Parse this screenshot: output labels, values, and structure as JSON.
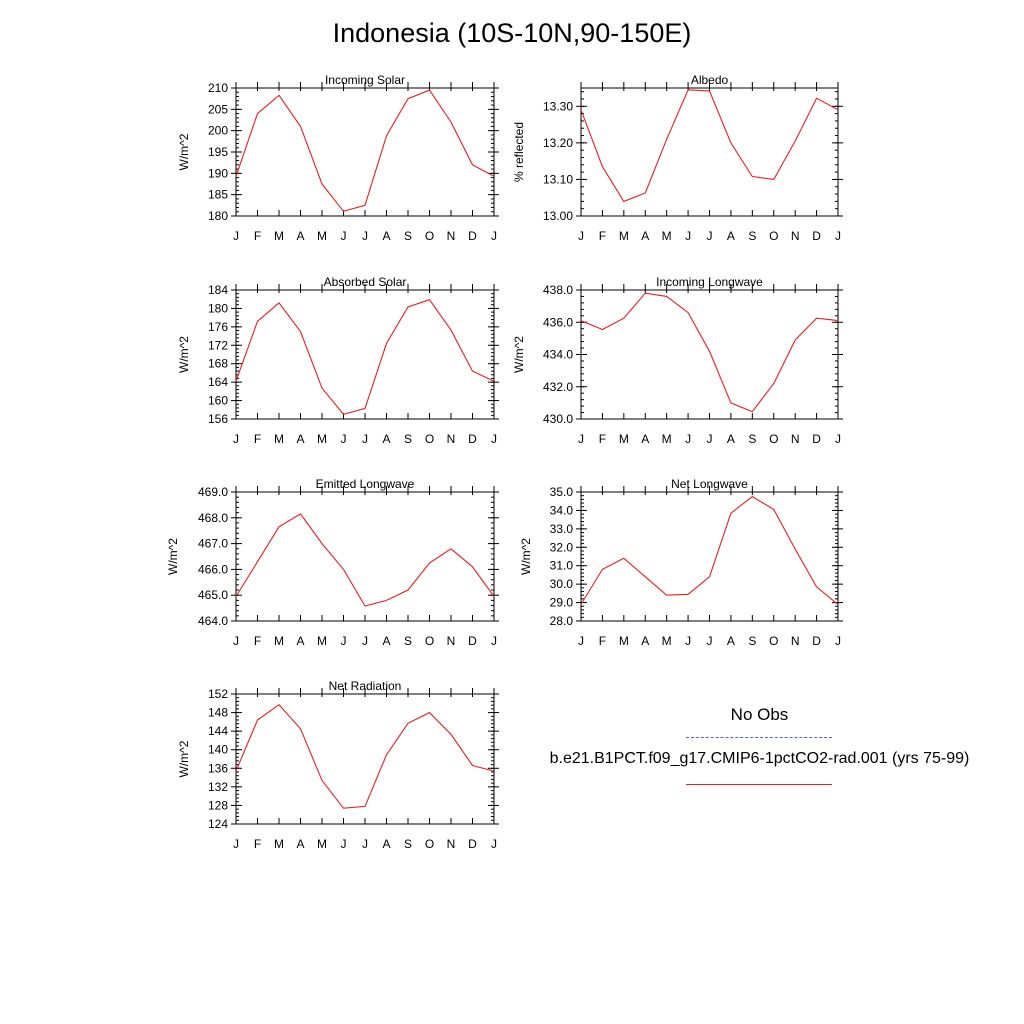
{
  "title": "Indonesia (10S-10N,90-150E)",
  "months": [
    "J",
    "F",
    "M",
    "A",
    "M",
    "J",
    "J",
    "A",
    "S",
    "O",
    "N",
    "D",
    "J"
  ],
  "colors": {
    "model_line": "#e52020",
    "obs_line": "#5a5af0",
    "axis": "#000000"
  },
  "legend": {
    "obs_label": "No Obs",
    "model_label": "b.e21.B1PCT.f09_g17.CMIP6-1pctCO2-rad.001 (yrs 75-99)"
  },
  "chart_data": [
    {
      "type": "line",
      "title": "Incoming Solar",
      "ylabel": "W/m^2",
      "ylim": [
        180,
        210
      ],
      "yticks": [
        180,
        185,
        190,
        195,
        200,
        205,
        210
      ],
      "ytick_labels": [
        "180",
        "185",
        "190",
        "195",
        "200",
        "205",
        "210"
      ],
      "x": [
        "J",
        "F",
        "M",
        "A",
        "M",
        "J",
        "J",
        "A",
        "S",
        "O",
        "N",
        "D",
        "J"
      ],
      "series": [
        {
          "values": [
            189.3,
            204.0,
            208.3,
            201.0,
            187.5,
            181.1,
            182.5,
            198.8,
            207.5,
            209.5,
            202.0,
            192.0,
            189.3
          ]
        }
      ]
    },
    {
      "type": "line",
      "title": "Albedo",
      "ylabel": "% reflected",
      "ylim": [
        13.0,
        13.35
      ],
      "yticks": [
        13.0,
        13.1,
        13.2,
        13.3
      ],
      "ytick_labels": [
        "13.00",
        "13.10",
        "13.20",
        "13.30"
      ],
      "x": [
        "J",
        "F",
        "M",
        "A",
        "M",
        "J",
        "J",
        "A",
        "S",
        "O",
        "N",
        "D",
        "J"
      ],
      "series": [
        {
          "values": [
            13.29,
            13.135,
            13.04,
            13.063,
            13.21,
            13.345,
            13.342,
            13.2,
            13.108,
            13.1,
            13.205,
            13.322,
            13.29
          ]
        }
      ]
    },
    {
      "type": "line",
      "title": "Absorbed Solar",
      "ylabel": "W/m^2",
      "ylim": [
        156,
        184
      ],
      "yticks": [
        156,
        160,
        164,
        168,
        172,
        176,
        180,
        184
      ],
      "ytick_labels": [
        "156",
        "160",
        "164",
        "168",
        "172",
        "176",
        "180",
        "184"
      ],
      "x": [
        "J",
        "F",
        "M",
        "A",
        "M",
        "J",
        "J",
        "A",
        "S",
        "O",
        "N",
        "D",
        "J"
      ],
      "series": [
        {
          "values": [
            164.2,
            177.2,
            181.2,
            175.0,
            162.7,
            157.0,
            158.3,
            172.4,
            180.3,
            181.9,
            175.3,
            166.4,
            164.2
          ]
        }
      ]
    },
    {
      "type": "line",
      "title": "Incoming Longwave",
      "ylabel": "W/m^2",
      "ylim": [
        430.0,
        438.0
      ],
      "yticks": [
        430,
        432,
        434,
        436,
        438
      ],
      "ytick_labels": [
        "430.0",
        "432.0",
        "434.0",
        "436.0",
        "438.0"
      ],
      "x": [
        "J",
        "F",
        "M",
        "A",
        "M",
        "J",
        "J",
        "A",
        "S",
        "O",
        "N",
        "D",
        "J"
      ],
      "series": [
        {
          "values": [
            436.1,
            435.55,
            436.25,
            437.8,
            437.6,
            436.6,
            434.2,
            431.0,
            430.45,
            432.2,
            434.9,
            436.25,
            436.1
          ]
        }
      ]
    },
    {
      "type": "line",
      "title": "Emitted Longwave",
      "ylabel": "W/m^2",
      "ylim": [
        464.0,
        469.0
      ],
      "yticks": [
        464,
        465,
        466,
        467,
        468,
        469
      ],
      "ytick_labels": [
        "464.0",
        "465.0",
        "466.0",
        "467.0",
        "468.0",
        "469.0"
      ],
      "x": [
        "J",
        "F",
        "M",
        "A",
        "M",
        "J",
        "J",
        "A",
        "S",
        "O",
        "N",
        "D",
        "J"
      ],
      "series": [
        {
          "values": [
            464.95,
            466.3,
            467.65,
            468.15,
            467.0,
            466.0,
            464.58,
            464.8,
            465.2,
            466.25,
            466.8,
            466.1,
            464.95
          ]
        }
      ]
    },
    {
      "type": "line",
      "title": "Net Longwave",
      "ylabel": "W/m^2",
      "ylim": [
        28.0,
        35.0
      ],
      "yticks": [
        28,
        29,
        30,
        31,
        32,
        33,
        34,
        35
      ],
      "ytick_labels": [
        "28.0",
        "29.0",
        "30.0",
        "31.0",
        "32.0",
        "33.0",
        "34.0",
        "35.0"
      ],
      "x": [
        "J",
        "F",
        "M",
        "A",
        "M",
        "J",
        "J",
        "A",
        "S",
        "O",
        "N",
        "D",
        "J"
      ],
      "series": [
        {
          "values": [
            28.9,
            30.8,
            31.4,
            30.4,
            29.4,
            29.45,
            30.4,
            33.85,
            34.75,
            34.05,
            31.9,
            29.85,
            28.9
          ]
        }
      ]
    },
    {
      "type": "line",
      "title": "Net Radiation",
      "ylabel": "W/m^2",
      "ylim": [
        124,
        152
      ],
      "yticks": [
        124,
        128,
        132,
        136,
        140,
        144,
        148,
        152
      ],
      "ytick_labels": [
        "124",
        "128",
        "132",
        "136",
        "140",
        "144",
        "148",
        "152"
      ],
      "x": [
        "J",
        "F",
        "M",
        "A",
        "M",
        "J",
        "J",
        "A",
        "S",
        "O",
        "N",
        "D",
        "J"
      ],
      "series": [
        {
          "values": [
            135.4,
            146.4,
            149.7,
            144.5,
            133.4,
            127.4,
            127.8,
            138.9,
            145.7,
            148.0,
            143.3,
            136.6,
            135.4
          ]
        }
      ]
    }
  ]
}
